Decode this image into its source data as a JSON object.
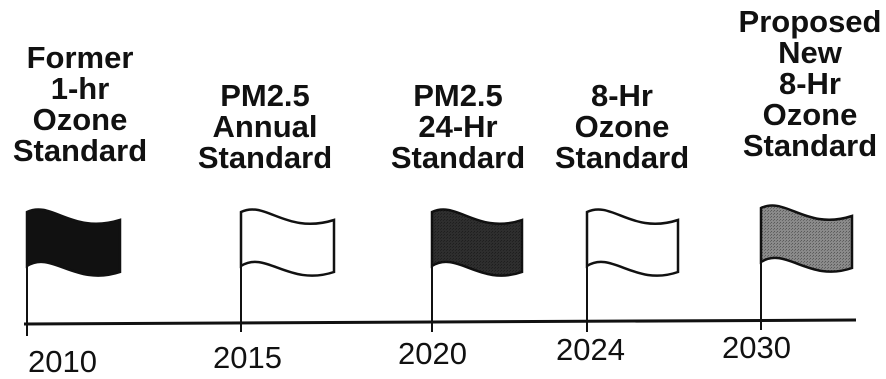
{
  "colors": {
    "line": "#111111",
    "flag_black": "#111111",
    "flag_dark": "#2e2e2e",
    "flag_gray": "#8a8a8a",
    "flag_white": "#ffffff"
  },
  "milestones": [
    {
      "year": "2010",
      "label_lines": [
        "Former",
        "1-hr",
        "Ozone",
        "Standard"
      ],
      "flag_fill": "black"
    },
    {
      "year": "2015",
      "label_lines": [
        "PM2.5",
        "Annual",
        "Standard"
      ],
      "flag_fill": "white"
    },
    {
      "year": "2020",
      "label_lines": [
        "PM2.5",
        "24-Hr",
        "Standard"
      ],
      "flag_fill": "dark"
    },
    {
      "year": "2024",
      "label_lines": [
        "8-Hr",
        "Ozone",
        "Standard"
      ],
      "flag_fill": "white"
    },
    {
      "year": "2030",
      "label_lines": [
        "Proposed",
        "New",
        "8-Hr",
        "Ozone",
        "Standard"
      ],
      "flag_fill": "gray"
    }
  ]
}
